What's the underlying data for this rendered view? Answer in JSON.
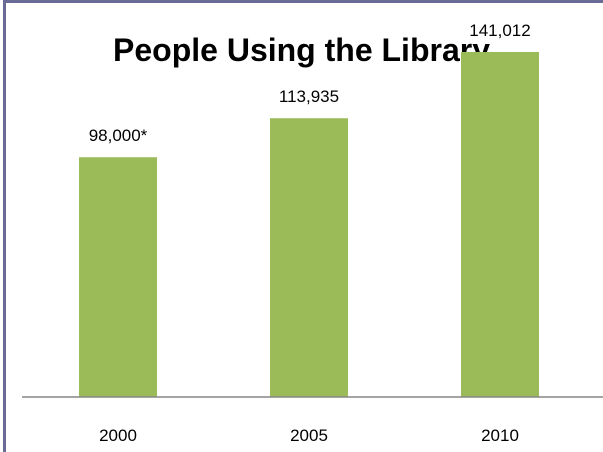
{
  "chart_data": {
    "type": "bar",
    "title": "People Using the Library",
    "categories": [
      "2000",
      "2005",
      "2010"
    ],
    "values": [
      98000,
      113935,
      141012
    ],
    "data_labels": [
      "98,000*",
      "113,935",
      "141,012"
    ],
    "xlabel": "",
    "ylabel": "",
    "ylim": [
      0,
      150000
    ],
    "grid": false,
    "legend": "none",
    "bar_color": "#9bbb59",
    "axis_color": "#868686",
    "frame_color": "#6a6a96"
  }
}
